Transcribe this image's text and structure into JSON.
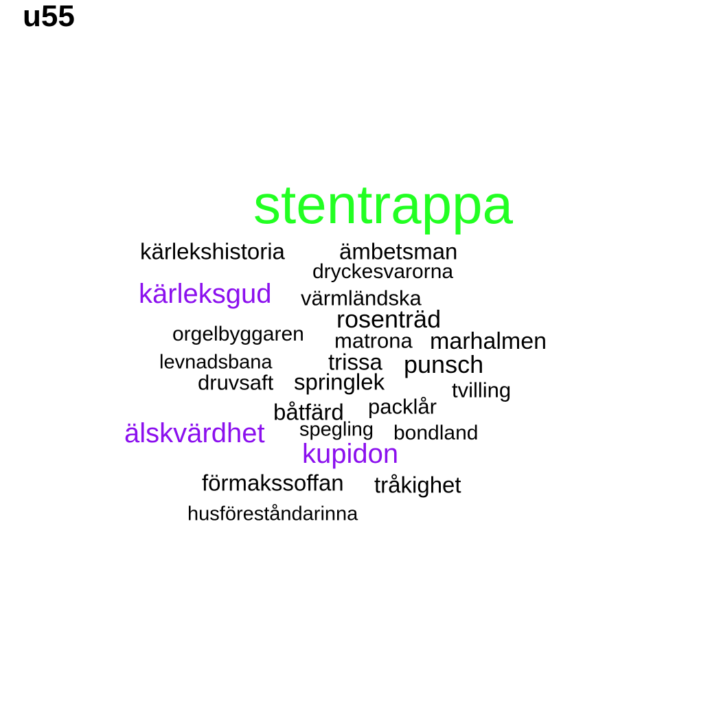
{
  "title": "u55",
  "colors": {
    "highlight_green": "#22ff22",
    "highlight_purple": "#8b10ee",
    "default_black": "#000000"
  },
  "words": [
    {
      "text": "stentrappa",
      "color": "green"
    },
    {
      "text": "kärlekshistoria",
      "color": "black"
    },
    {
      "text": "ämbetsman",
      "color": "black"
    },
    {
      "text": "dryckesvarorna",
      "color": "black"
    },
    {
      "text": "kärleksgud",
      "color": "purple"
    },
    {
      "text": "värmländska",
      "color": "black"
    },
    {
      "text": "rosenträd",
      "color": "black"
    },
    {
      "text": "orgelbyggaren",
      "color": "black"
    },
    {
      "text": "matrona",
      "color": "black"
    },
    {
      "text": "marhalmen",
      "color": "black"
    },
    {
      "text": "levnadsbana",
      "color": "black"
    },
    {
      "text": "trissa",
      "color": "black"
    },
    {
      "text": "punsch",
      "color": "black"
    },
    {
      "text": "druvsaft",
      "color": "black"
    },
    {
      "text": "springlek",
      "color": "black"
    },
    {
      "text": "tvilling",
      "color": "black"
    },
    {
      "text": "båtfärd",
      "color": "black"
    },
    {
      "text": "packlår",
      "color": "black"
    },
    {
      "text": "älskvärdhet",
      "color": "purple"
    },
    {
      "text": "spegling",
      "color": "black"
    },
    {
      "text": "bondland",
      "color": "black"
    },
    {
      "text": "kupidon",
      "color": "purple"
    },
    {
      "text": "förmakssoffan",
      "color": "black"
    },
    {
      "text": "tråkighet",
      "color": "black"
    },
    {
      "text": "husföreståndarinna",
      "color": "black"
    }
  ]
}
